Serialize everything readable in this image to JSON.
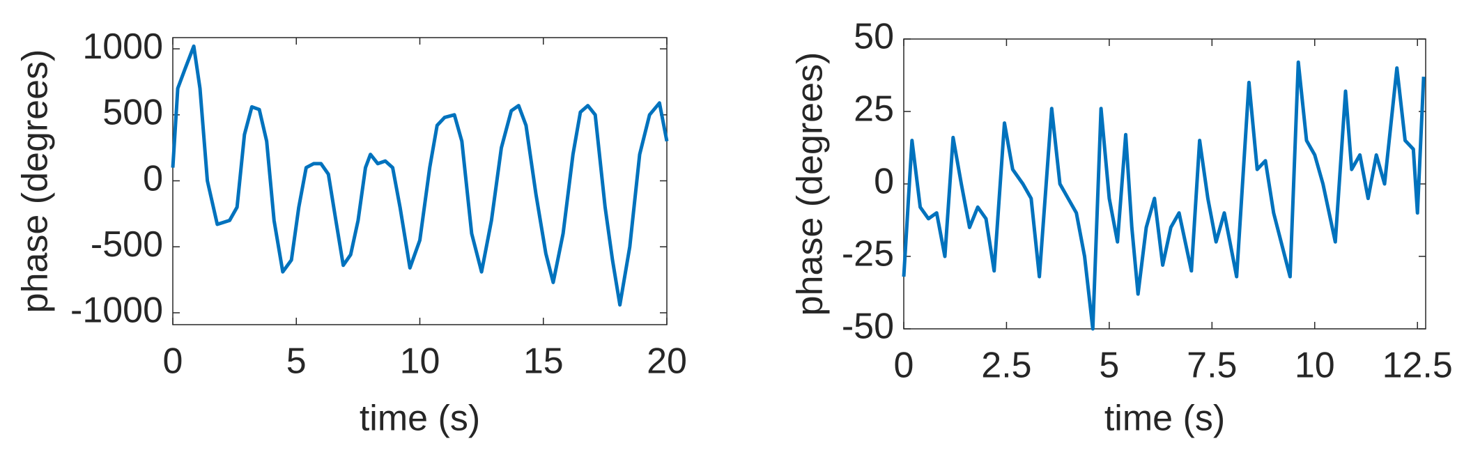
{
  "chart_data": [
    {
      "type": "line",
      "xlabel": "time (s)",
      "ylabel": "phase (degrees)",
      "xlim": [
        0,
        20
      ],
      "ylim": [
        -1090,
        1085
      ],
      "xticks": [
        0,
        5,
        10,
        15,
        20
      ],
      "yticks": [
        -1000,
        -500,
        0,
        500,
        1000
      ],
      "series": [
        {
          "color": "#0072bd",
          "x": [
            0,
            0.2,
            0.5,
            0.85,
            1.1,
            1.4,
            1.8,
            2.3,
            2.6,
            2.9,
            3.2,
            3.5,
            3.8,
            4.1,
            4.45,
            4.8,
            5.1,
            5.4,
            5.7,
            6.0,
            6.3,
            6.6,
            6.9,
            7.2,
            7.5,
            7.8,
            8.0,
            8.3,
            8.6,
            8.9,
            9.2,
            9.6,
            10.0,
            10.4,
            10.7,
            11.0,
            11.4,
            11.7,
            12.1,
            12.5,
            12.9,
            13.3,
            13.7,
            14.0,
            14.3,
            14.7,
            15.1,
            15.4,
            15.8,
            16.2,
            16.5,
            16.8,
            17.1,
            17.5,
            17.8,
            18.1,
            18.5,
            18.9,
            19.3,
            19.7,
            20.0
          ],
          "values": [
            100,
            700,
            850,
            1020,
            700,
            0,
            -330,
            -300,
            -200,
            350,
            560,
            540,
            300,
            -300,
            -690,
            -600,
            -200,
            100,
            130,
            130,
            50,
            -300,
            -640,
            -560,
            -300,
            100,
            200,
            130,
            150,
            100,
            -200,
            -660,
            -450,
            100,
            420,
            480,
            500,
            300,
            -400,
            -690,
            -300,
            250,
            530,
            570,
            420,
            -100,
            -550,
            -770,
            -400,
            200,
            520,
            570,
            500,
            -200,
            -600,
            -940,
            -500,
            200,
            500,
            590,
            300
          ]
        }
      ]
    },
    {
      "type": "line",
      "xlabel": "time (s)",
      "ylabel": "phase (degrees)",
      "xlim": [
        0,
        12.7
      ],
      "ylim": [
        -50,
        50
      ],
      "xticks": [
        0,
        2.5,
        5,
        7.5,
        10,
        12.5
      ],
      "yticks": [
        -50,
        -25,
        0,
        25,
        50
      ],
      "series": [
        {
          "color": "#0072bd",
          "x": [
            0,
            0.2,
            0.4,
            0.6,
            0.8,
            1.0,
            1.2,
            1.4,
            1.6,
            1.8,
            2.0,
            2.2,
            2.45,
            2.65,
            2.9,
            3.1,
            3.3,
            3.6,
            3.8,
            4.0,
            4.2,
            4.4,
            4.6,
            4.8,
            5.0,
            5.2,
            5.4,
            5.55,
            5.7,
            5.9,
            6.1,
            6.3,
            6.5,
            6.7,
            7.0,
            7.2,
            7.4,
            7.6,
            7.8,
            8.1,
            8.4,
            8.6,
            8.8,
            9.0,
            9.4,
            9.6,
            9.8,
            10.0,
            10.2,
            10.5,
            10.75,
            10.9,
            11.1,
            11.3,
            11.5,
            11.7,
            12.0,
            12.2,
            12.4,
            12.5,
            12.65
          ],
          "values": [
            -32,
            15,
            -8,
            -12,
            -10,
            -25,
            16,
            0,
            -15,
            -8,
            -12,
            -30,
            21,
            5,
            0,
            -5,
            -32,
            26,
            0,
            -5,
            -10,
            -25,
            -50,
            26,
            -5,
            -20,
            17,
            -15,
            -38,
            -15,
            -5,
            -28,
            -15,
            -10,
            -30,
            15,
            -5,
            -20,
            -10,
            -32,
            35,
            5,
            8,
            -10,
            -32,
            42,
            15,
            10,
            0,
            -20,
            32,
            5,
            10,
            -5,
            10,
            0,
            40,
            15,
            12,
            -10,
            37
          ]
        }
      ]
    }
  ]
}
